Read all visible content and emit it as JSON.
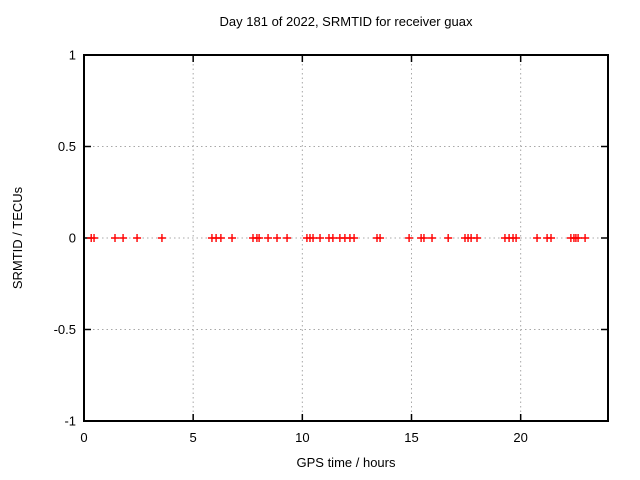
{
  "chart_data": {
    "type": "scatter",
    "title": "Day 181 of 2022, SRMTID for receiver guax",
    "xlabel": "GPS time / hours",
    "ylabel": "SRMTID / TECUs",
    "xlim": [
      0,
      24
    ],
    "ylim": [
      -1,
      1
    ],
    "xticks": [
      0,
      5,
      10,
      15,
      20
    ],
    "yticks": [
      -1,
      -0.5,
      0,
      0.5,
      1
    ],
    "grid": "dotted",
    "legend": "none",
    "series": [
      {
        "name": "SRMTID",
        "marker": "plus",
        "color": "#ff0000",
        "x": [
          0.33,
          0.46,
          1.42,
          1.79,
          2.43,
          3.57,
          5.86,
          6.05,
          6.27,
          6.78,
          7.74,
          7.92,
          8.02,
          8.43,
          8.84,
          9.3,
          10.21,
          10.35,
          10.49,
          10.81,
          11.22,
          11.4,
          11.72,
          11.95,
          12.18,
          12.37,
          13.42,
          13.56,
          14.89,
          15.44,
          15.57,
          15.94,
          16.68,
          17.45,
          17.59,
          17.73,
          18.0,
          19.28,
          19.47,
          19.65,
          19.79,
          20.75,
          21.21,
          21.39,
          22.3,
          22.44,
          22.53,
          22.63,
          22.95
        ],
        "y": [
          0,
          0,
          0,
          0,
          0,
          0,
          0,
          0,
          0,
          0,
          0,
          0,
          0,
          0,
          0,
          0,
          0,
          0,
          0,
          0,
          0,
          0,
          0,
          0,
          0,
          0,
          0,
          0,
          0,
          0,
          0,
          0,
          0,
          0,
          0,
          0,
          0,
          0,
          0,
          0,
          0,
          0,
          0,
          0,
          0,
          0,
          0,
          0,
          0
        ]
      }
    ]
  },
  "colors": {
    "background": "#ffffff",
    "border": "#000000",
    "grid": "#a8a8a8",
    "marker": "#ff0000",
    "text": "#000000"
  }
}
